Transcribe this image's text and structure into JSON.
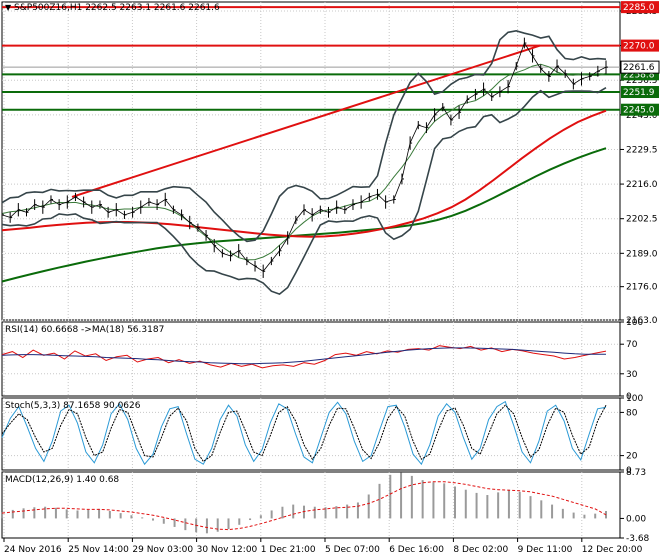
{
  "header": {
    "symbol_line": "S&P500Z16,H1  2262.5 2263.1 2261.6 2261.6"
  },
  "indicators": {
    "rsi_label": "RSI(14) 60.6668  ->MA(18) 56.3187",
    "stoch_label": "Stoch(5,3,3) 87.1658 90.0626",
    "macd_label": "MACD(12,26,9) 1.40 0.68"
  },
  "colors": {
    "price": "#000000",
    "bollinger": "#36454a",
    "ma_red": "#e01010",
    "ma_green": "#0a6b0a",
    "level_red": "#e01010",
    "level_green": "#0a6b0a",
    "rsi": "#e01010",
    "rsi_ma": "#1c2a7a",
    "stoch_main": "#2b9ad6",
    "stoch_signal": "#000000",
    "macd_signal": "#e01010",
    "macd_hist": "#9a9a9a",
    "grid": "#c8c8c8",
    "axis_text": "#000000",
    "badge_bg": "#e01010"
  },
  "chart_data": [
    {
      "type": "line",
      "panel": "price",
      "timeframe": "H1",
      "x_labels": [
        "24 Nov 2016",
        "25 Nov 14:00",
        "29 Nov 03:00",
        "30 Nov 12:00",
        "1 Dec 21:00",
        "5 Dec 07:00",
        "6 Dec 16:00",
        "8 Dec 02:00",
        "9 Dec 11:00",
        "12 Dec 20:00"
      ],
      "y_ticks": [
        2163.0,
        2176.0,
        2189.0,
        2202.5,
        2216.0,
        2229.5,
        2243.0,
        2256.5,
        2270.0,
        2283.5
      ],
      "ylim": [
        2163.0,
        2287.0
      ],
      "levels": [
        {
          "value": 2285.0,
          "label": "2285.0",
          "color": "red"
        },
        {
          "value": 2270.0,
          "label": "2270.0",
          "color": "red"
        },
        {
          "value": 2258.8,
          "label": "2258.8",
          "color": "green"
        },
        {
          "value": 2251.9,
          "label": "2251.9",
          "color": "green"
        },
        {
          "value": 2245.0,
          "label": "2245.0",
          "color": "green"
        }
      ],
      "current_price": {
        "value": 2261.6,
        "label": "2261.6"
      },
      "trendline": {
        "from": 2211.0,
        "to": 2270.0
      },
      "close_path": [
        2204,
        2203,
        2206,
        2205,
        2208,
        2207,
        2210,
        2208,
        2209,
        2211,
        2209,
        2207,
        2208,
        2205,
        2206,
        2204,
        2205,
        2207,
        2209,
        2208,
        2210,
        2206,
        2204,
        2201,
        2199,
        2196,
        2192,
        2189,
        2188,
        2190,
        2186,
        2184,
        2182,
        2186,
        2190,
        2195,
        2202,
        2206,
        2204,
        2206,
        2205,
        2207,
        2206,
        2208,
        2209,
        2211,
        2212,
        2209,
        2210,
        2218,
        2232,
        2239,
        2238,
        2243,
        2246,
        2241,
        2244,
        2249,
        2251,
        2253,
        2250,
        2252,
        2254,
        2262,
        2271,
        2266,
        2261,
        2258,
        2262,
        2259,
        2255,
        2257,
        2258,
        2260,
        2261.6
      ],
      "ma_red": [
        2198,
        2198.5,
        2199,
        2199.6,
        2200.1,
        2200.5,
        2200.9,
        2201.1,
        2201.2,
        2201.2,
        2201,
        2200.7,
        2200.3,
        2199.8,
        2199.2,
        2198.6,
        2198,
        2197.4,
        2196.8,
        2196.3,
        2195.9,
        2195.6,
        2195.5,
        2195.6,
        2196,
        2196.6,
        2197.4,
        2198.4,
        2199.6,
        2201,
        2202.6,
        2204.6,
        2207,
        2210,
        2213.6,
        2217.6,
        2221.8,
        2226,
        2230,
        2233.8,
        2237.2,
        2240.2,
        2242.6,
        2244.6
      ],
      "ma_green": [
        2178,
        2179.4,
        2180.8,
        2182.1,
        2183.4,
        2184.6,
        2185.8,
        2186.9,
        2188,
        2189,
        2190,
        2190.9,
        2191.7,
        2192.4,
        2193,
        2193.5,
        2193.9,
        2194.3,
        2194.7,
        2195.1,
        2195.5,
        2195.9,
        2196.3,
        2196.7,
        2197.1,
        2197.6,
        2198.1,
        2198.6,
        2199.2,
        2199.9,
        2200.8,
        2202,
        2203.6,
        2205.6,
        2208,
        2210.6,
        2213.4,
        2216.2,
        2219,
        2221.6,
        2224,
        2226.2,
        2228.2,
        2230
      ]
    },
    {
      "type": "line",
      "panel": "rsi",
      "name": "RSI(14)",
      "ylim": [
        0,
        100
      ],
      "y_ticks": [
        0,
        30,
        70,
        100
      ],
      "tick_labels": [
        "0",
        "30",
        "70",
        "100"
      ],
      "series": [
        {
          "name": "RSI(14)",
          "values": [
            56,
            60,
            52,
            62,
            55,
            58,
            50,
            61,
            54,
            57,
            48,
            53,
            55,
            46,
            50,
            52,
            45,
            49,
            44,
            47,
            42,
            39,
            44,
            40,
            43,
            38,
            41,
            42,
            40,
            45,
            43,
            48,
            56,
            58,
            55,
            60,
            57,
            61,
            59,
            63,
            64,
            62,
            68,
            66,
            64,
            67,
            62,
            65,
            60,
            63,
            61,
            58,
            56,
            54,
            50,
            52,
            55,
            58,
            60.67
          ]
        },
        {
          "name": "MA(18)",
          "values": [
            55,
            55.5,
            56,
            56,
            55.5,
            55,
            54.5,
            54,
            53.5,
            53,
            52,
            51.5,
            51,
            50.5,
            49.5,
            49,
            48,
            47,
            46.5,
            46,
            45,
            44.5,
            44,
            43.5,
            43.5,
            44,
            44.5,
            45,
            46,
            47,
            48.5,
            50,
            51.5,
            53,
            54.5,
            56,
            57.5,
            59,
            60.5,
            62,
            63,
            64,
            64.5,
            65,
            65,
            64.8,
            64.5,
            64,
            63.5,
            63,
            62,
            61,
            60,
            59,
            58,
            57,
            56.5,
            56.3,
            56.32
          ]
        }
      ]
    },
    {
      "type": "line",
      "panel": "stochastic",
      "name": "Stoch(5,3,3)",
      "ylim": [
        0,
        100
      ],
      "y_ticks": [
        0,
        20,
        80,
        100
      ],
      "tick_labels": [
        "0",
        "20",
        "80",
        "100"
      ],
      "series": [
        {
          "name": "%K",
          "values": [
            45,
            72,
            88,
            60,
            30,
            12,
            40,
            82,
            90,
            65,
            25,
            10,
            35,
            78,
            92,
            70,
            30,
            8,
            22,
            60,
            85,
            88,
            50,
            15,
            8,
            30,
            70,
            90,
            75,
            35,
            12,
            28,
            66,
            92,
            85,
            50,
            18,
            10,
            45,
            80,
            94,
            78,
            40,
            12,
            20,
            55,
            88,
            90,
            60,
            22,
            8,
            35,
            75,
            92,
            80,
            45,
            15,
            30,
            70,
            88,
            95,
            62,
            25,
            10,
            40,
            82,
            90,
            68,
            30,
            14,
            50,
            85,
            87.17
          ]
        },
        {
          "name": "%D",
          "values": [
            50,
            65,
            78,
            70,
            45,
            25,
            30,
            62,
            84,
            78,
            45,
            20,
            25,
            58,
            84,
            80,
            50,
            20,
            18,
            45,
            75,
            86,
            68,
            30,
            12,
            20,
            52,
            80,
            82,
            55,
            25,
            20,
            48,
            80,
            88,
            68,
            35,
            15,
            30,
            62,
            86,
            85,
            58,
            28,
            16,
            38,
            72,
            88,
            75,
            40,
            15,
            22,
            55,
            82,
            86,
            62,
            30,
            22,
            50,
            78,
            90,
            78,
            45,
            18,
            28,
            62,
            86,
            80,
            48,
            22,
            32,
            68,
            90.06
          ]
        }
      ]
    },
    {
      "type": "bar",
      "panel": "macd",
      "name": "MACD(12,26,9)",
      "ylim": [
        -3.68,
        8.73
      ],
      "y_ticks": [
        -3.68,
        0.0,
        8.73
      ],
      "tick_labels": [
        "-3.68",
        "0.00",
        "8.73"
      ],
      "series": [
        {
          "name": "MACD",
          "values": [
            1.2,
            1.6,
            1.9,
            2.1,
            2.2,
            2.0,
            1.7,
            1.5,
            1.6,
            1.8,
            1.4,
            1.0,
            0.6,
            0.2,
            -0.4,
            -1.0,
            -1.6,
            -2.2,
            -2.6,
            -2.8,
            -2.5,
            -2.0,
            -1.2,
            -0.3,
            0.6,
            1.5,
            2.2,
            2.6,
            2.4,
            2.2,
            2.1,
            2.3,
            2.6,
            3.0,
            4.5,
            6.5,
            8.2,
            8.6,
            8.0,
            7.2,
            6.8,
            6.6,
            6.0,
            5.4,
            4.8,
            4.4,
            4.9,
            5.4,
            5.0,
            4.2,
            3.4,
            2.6,
            1.8,
            1.1,
            0.7,
            0.9,
            1.4
          ]
        },
        {
          "name": "Signal",
          "values": [
            1.0,
            1.2,
            1.4,
            1.6,
            1.8,
            1.9,
            1.9,
            1.8,
            1.7,
            1.7,
            1.6,
            1.4,
            1.2,
            0.9,
            0.6,
            0.2,
            -0.3,
            -0.8,
            -1.3,
            -1.7,
            -2.0,
            -2.1,
            -1.9,
            -1.5,
            -1.0,
            -0.4,
            0.2,
            0.8,
            1.3,
            1.6,
            1.8,
            2.0,
            2.1,
            2.3,
            2.8,
            3.6,
            4.6,
            5.6,
            6.3,
            6.7,
            6.9,
            6.9,
            6.7,
            6.4,
            6.0,
            5.6,
            5.4,
            5.3,
            5.2,
            5.0,
            4.6,
            4.2,
            3.6,
            3.0,
            2.4,
            1.8,
            0.68
          ]
        }
      ]
    }
  ]
}
